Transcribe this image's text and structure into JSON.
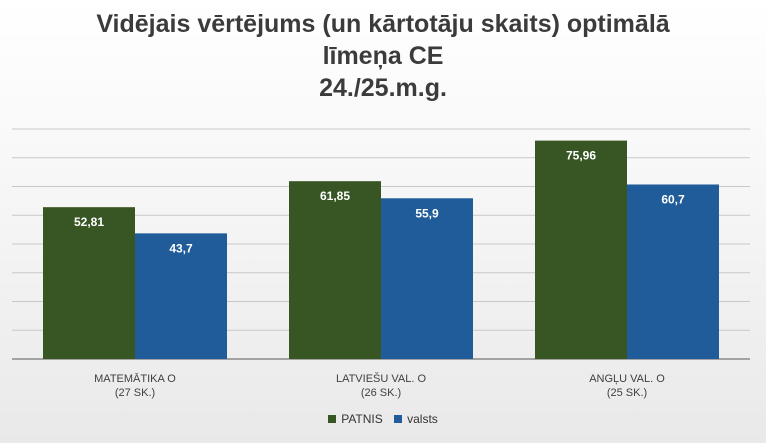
{
  "chart_data": {
    "type": "bar",
    "title_lines": [
      "Vidējais vērtējums (un kārtotāju skaits) optimālā",
      "līmeņa CE",
      "24./25.m.g."
    ],
    "categories": [
      [
        "MATEMĀTIKA O",
        "(27 SK.)"
      ],
      [
        "LATVIEŠU VAL. O",
        "(26 SK.)"
      ],
      [
        "ANGĻU VAL. O",
        "(25 SK.)"
      ]
    ],
    "series": [
      {
        "name": "PATNIS",
        "color": "#375623",
        "values": [
          52.81,
          61.85,
          75.96
        ],
        "labels": [
          "52,81",
          "61,85",
          "75,96"
        ]
      },
      {
        "name": "valsts",
        "color": "#1F5C99",
        "values": [
          43.7,
          55.9,
          60.7
        ],
        "labels": [
          "43,7",
          "55,9",
          "60,7"
        ]
      }
    ],
    "ylim": [
      0,
      80
    ],
    "grid": true,
    "legend_position": "bottom"
  }
}
